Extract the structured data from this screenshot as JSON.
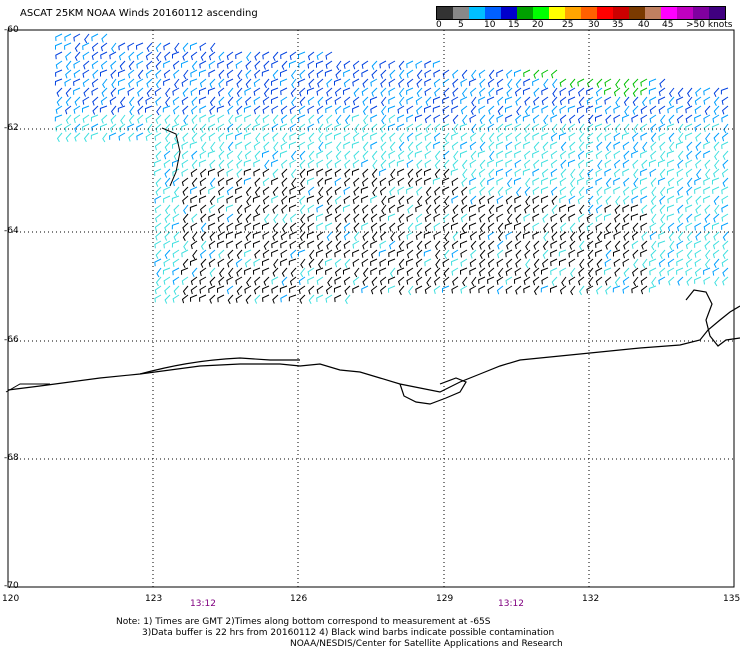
{
  "title": "ASCAT 25KM NOAA Winds 20160112 ascending",
  "scale": {
    "colors": [
      "#333333",
      "#888888",
      "#00bfff",
      "#0060ff",
      "#0000cc",
      "#00a000",
      "#00ff00",
      "#ffff00",
      "#ffa500",
      "#ff6000",
      "#ff0000",
      "#cc0000",
      "#7a3a00",
      "#c08060",
      "#ff00ff",
      "#c000c0",
      "#8000a0",
      "#400080"
    ],
    "labels": [
      "0",
      "5",
      "10",
      "15",
      "20",
      "25",
      "30",
      "35",
      "40",
      "45",
      ">50 knots"
    ]
  },
  "lat_labels": [
    "-60",
    "-62",
    "-64",
    "-66",
    "-68",
    "-70"
  ],
  "lon_labels": [
    "120",
    "123",
    "126",
    "129",
    "132",
    "135"
  ],
  "time_labels": [
    "13:12",
    "13:12"
  ],
  "notes": [
    "Note: 1) Times are GMT 2)Times along bottom correspond to measurement at -65S",
    "3)Data buffer is 22 hrs from 20160112 4) Black wind barbs indicate possible contamination",
    "NOAA/NESDIS/Center for Satellite Applications and Research"
  ],
  "colors": {
    "grid": "#000000",
    "coast": "#000000",
    "light_barb": "#40e0e0",
    "mid_barb": "#00a0ff",
    "dark_barb": "#0040e0",
    "green_barb": "#00c000",
    "contam_barb": "#000000"
  }
}
